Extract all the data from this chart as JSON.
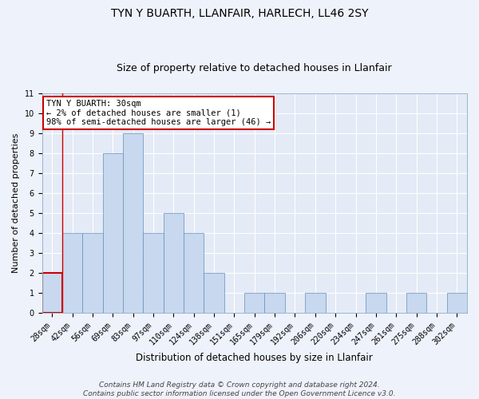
{
  "title1": "TYN Y BUARTH, LLANFAIR, HARLECH, LL46 2SY",
  "title2": "Size of property relative to detached houses in Llanfair",
  "xlabel": "Distribution of detached houses by size in Llanfair",
  "ylabel": "Number of detached properties",
  "categories": [
    "28sqm",
    "42sqm",
    "56sqm",
    "69sqm",
    "83sqm",
    "97sqm",
    "110sqm",
    "124sqm",
    "138sqm",
    "151sqm",
    "165sqm",
    "179sqm",
    "192sqm",
    "206sqm",
    "220sqm",
    "234sqm",
    "247sqm",
    "261sqm",
    "275sqm",
    "288sqm",
    "302sqm"
  ],
  "values": [
    2,
    4,
    4,
    8,
    9,
    4,
    5,
    4,
    2,
    0,
    1,
    1,
    0,
    1,
    0,
    0,
    1,
    0,
    1,
    0,
    1
  ],
  "bar_color": "#c8d8ee",
  "bar_edge_color": "#6090c0",
  "annotation_text": "TYN Y BUARTH: 30sqm\n← 2% of detached houses are smaller (1)\n98% of semi-detached houses are larger (46) →",
  "annotation_box_facecolor": "#ffffff",
  "annotation_box_edgecolor": "#cc0000",
  "highlight_edge_color": "#cc0000",
  "vline_color": "#cc0000",
  "ylim": [
    0,
    11
  ],
  "yticks": [
    0,
    1,
    2,
    3,
    4,
    5,
    6,
    7,
    8,
    9,
    10,
    11
  ],
  "footer_text": "Contains HM Land Registry data © Crown copyright and database right 2024.\nContains public sector information licensed under the Open Government Licence v3.0.",
  "bg_color": "#eef2fa",
  "plot_bg_color": "#e4eaf6",
  "grid_color": "#ffffff",
  "title1_fontsize": 10,
  "title2_fontsize": 9,
  "xlabel_fontsize": 8.5,
  "ylabel_fontsize": 8,
  "tick_fontsize": 7,
  "annot_fontsize": 7.5,
  "footer_fontsize": 6.5
}
